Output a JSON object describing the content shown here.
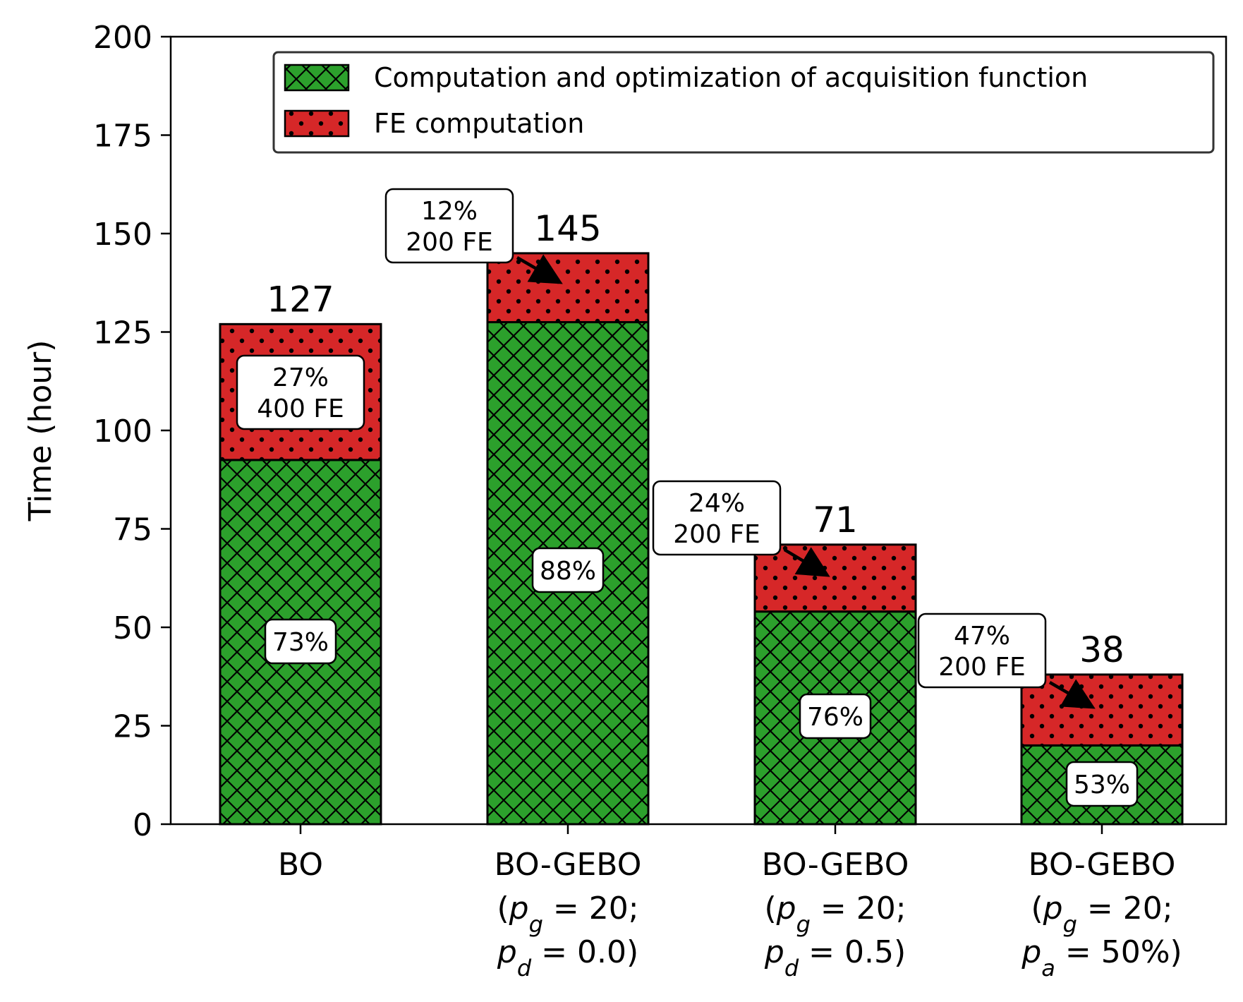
{
  "chart_data": {
    "type": "bar",
    "stacked": true,
    "ylabel": "Time (hour)",
    "ylim": [
      0,
      200
    ],
    "yticks": [
      "0",
      "25",
      "50",
      "75",
      "100",
      "125",
      "150",
      "175",
      "200"
    ],
    "grid": false,
    "legend_position": "top-right",
    "categories": [
      {
        "label_lines": [
          [
            {
              "t": "BO"
            }
          ]
        ]
      },
      {
        "label_lines": [
          [
            {
              "t": "BO-GEBO"
            }
          ],
          [
            {
              "t": "("
            },
            {
              "t": "p",
              "i": true
            },
            {
              "t": "g",
              "i": true,
              "sub": true
            },
            {
              "t": " = 20;"
            }
          ],
          [
            {
              "t": "p",
              "i": true
            },
            {
              "t": "d",
              "i": true,
              "sub": true
            },
            {
              "t": " = 0.0)"
            }
          ]
        ]
      },
      {
        "label_lines": [
          [
            {
              "t": "BO-GEBO"
            }
          ],
          [
            {
              "t": "("
            },
            {
              "t": "p",
              "i": true
            },
            {
              "t": "g",
              "i": true,
              "sub": true
            },
            {
              "t": " = 20;"
            }
          ],
          [
            {
              "t": "p",
              "i": true
            },
            {
              "t": "d",
              "i": true,
              "sub": true
            },
            {
              "t": " = 0.5)"
            }
          ]
        ]
      },
      {
        "label_lines": [
          [
            {
              "t": "BO-GEBO"
            }
          ],
          [
            {
              "t": "("
            },
            {
              "t": "p",
              "i": true
            },
            {
              "t": "g",
              "i": true,
              "sub": true
            },
            {
              "t": " = 20;"
            }
          ],
          [
            {
              "t": "p",
              "i": true
            },
            {
              "t": "a",
              "i": true,
              "sub": true
            },
            {
              "t": " = 50%)"
            }
          ]
        ]
      }
    ],
    "series": [
      {
        "name": "Computation and optimization of acquisition function",
        "color": "#2ca02c",
        "pattern": "crosshatch",
        "values": [
          92.5,
          127.5,
          54,
          20
        ],
        "labels": [
          "73%",
          "88%",
          "76%",
          "53%"
        ]
      },
      {
        "name": "FE computation",
        "color": "#d62728",
        "pattern": "dots",
        "values": [
          34.5,
          17.5,
          17,
          18
        ],
        "labels": [
          "27%\n400 FE",
          "12%\n200 FE",
          "24%\n200 FE",
          "47%\n200 FE"
        ]
      }
    ],
    "totals": [
      "127",
      "145",
      "71",
      "38"
    ]
  }
}
